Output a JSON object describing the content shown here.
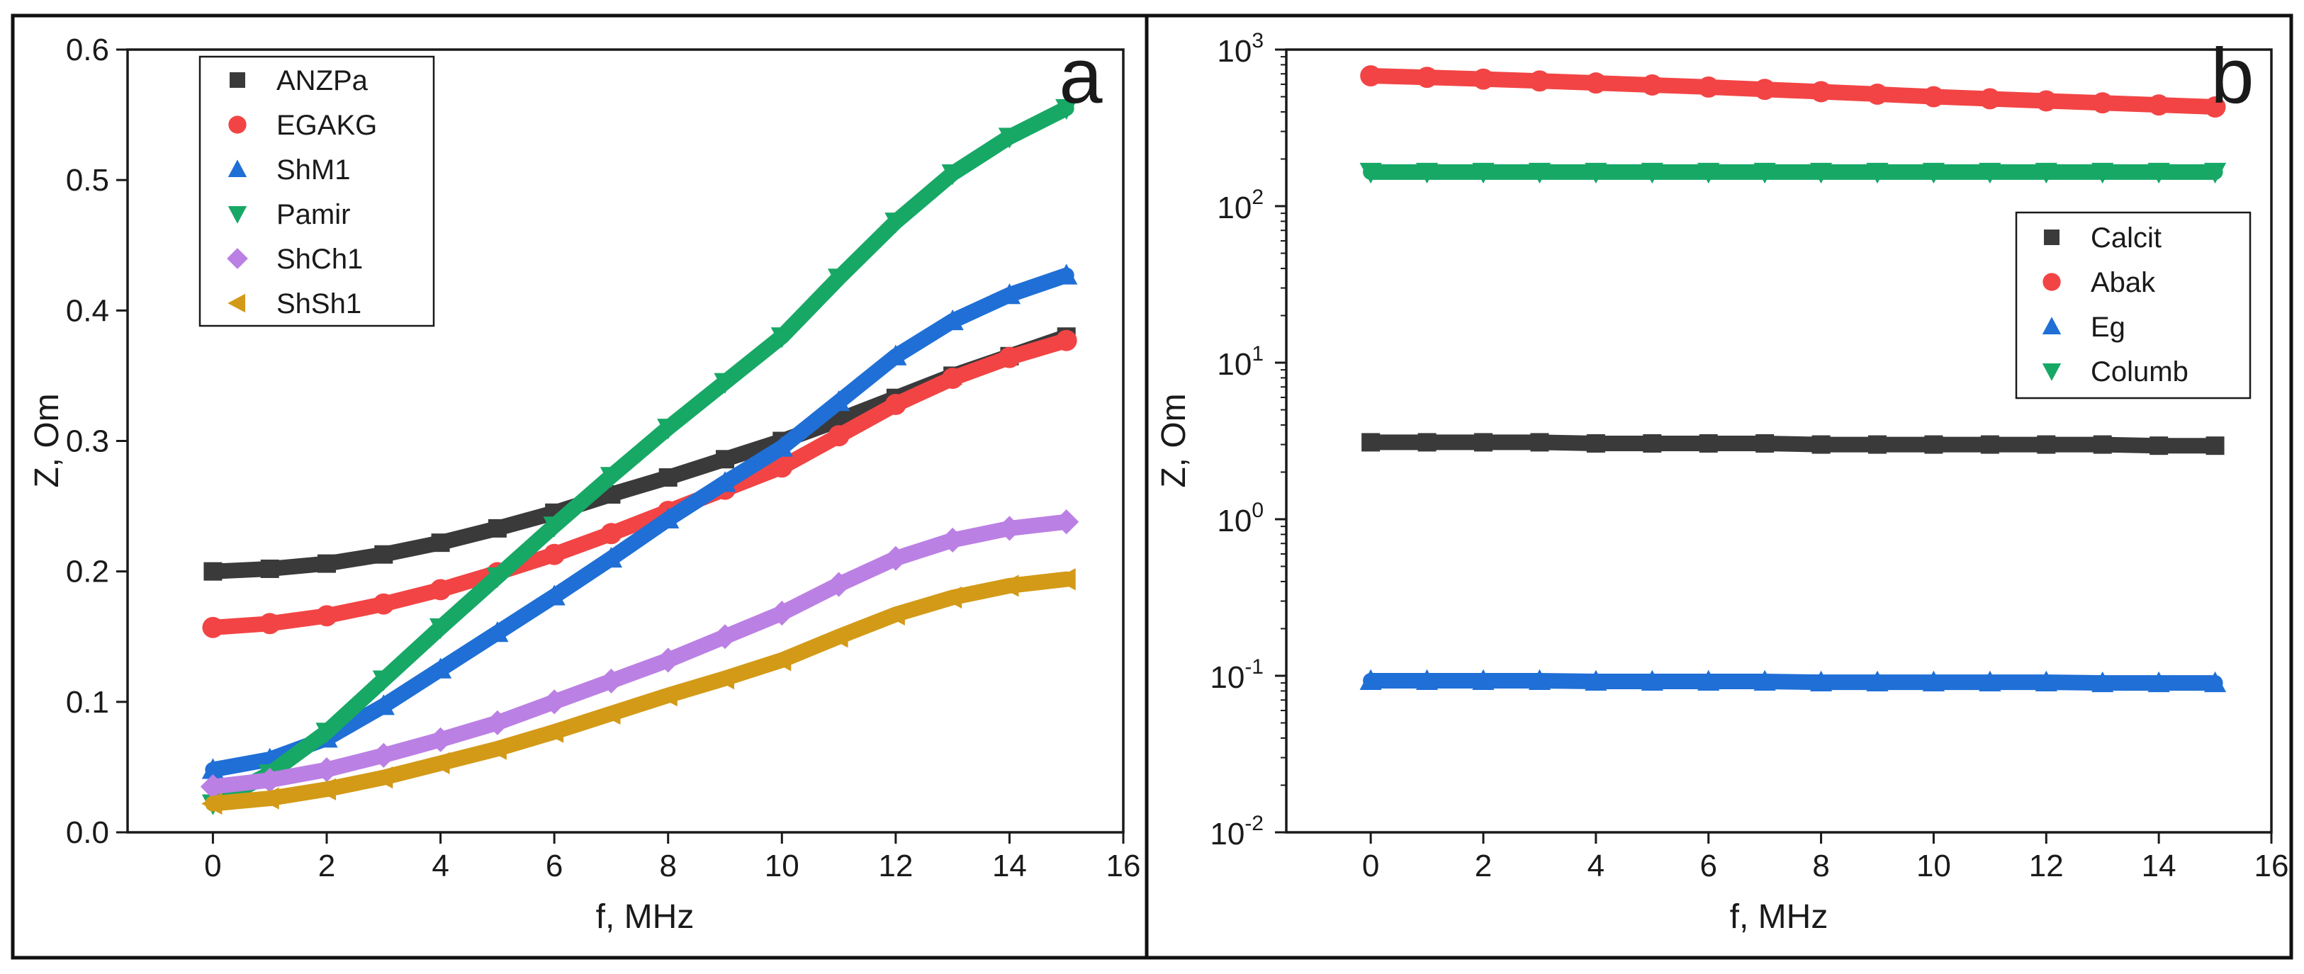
{
  "chart_data": [
    {
      "type": "scatter",
      "panel_label": "a",
      "xlabel": "f, MHz",
      "ylabel": "Z, Om",
      "xlim": [
        -1.5,
        16
      ],
      "ylim": [
        0,
        0.6
      ],
      "yscale": "linear",
      "legend_position": "top-left",
      "x_ticks": [
        {
          "value": 0,
          "label": "0"
        },
        {
          "value": 2,
          "label": "2"
        },
        {
          "value": 4,
          "label": "4"
        },
        {
          "value": 6,
          "label": "6"
        },
        {
          "value": 8,
          "label": "8"
        },
        {
          "value": 10,
          "label": "10"
        },
        {
          "value": 12,
          "label": "12"
        },
        {
          "value": 14,
          "label": "14"
        },
        {
          "value": 16,
          "label": "16"
        }
      ],
      "y_ticks": [
        {
          "value": 0,
          "label": "0.0"
        },
        {
          "value": 0.1,
          "label": "0.1"
        },
        {
          "value": 0.2,
          "label": "0.2"
        },
        {
          "value": 0.3,
          "label": "0.3"
        },
        {
          "value": 0.4,
          "label": "0.4"
        },
        {
          "value": 0.5,
          "label": "0.5"
        },
        {
          "value": 0.6,
          "label": "0.6"
        }
      ],
      "x": [
        0,
        1,
        2,
        3,
        4,
        5,
        6,
        7,
        8,
        9,
        10,
        11,
        12,
        13,
        14,
        15
      ],
      "series": [
        {
          "name": "ANZPa",
          "color": "#3a3a3a",
          "marker": "square",
          "values": [
            0.2,
            0.202,
            0.206,
            0.213,
            0.222,
            0.233,
            0.245,
            0.259,
            0.272,
            0.286,
            0.3,
            0.316,
            0.333,
            0.35,
            0.365,
            0.38
          ]
        },
        {
          "name": "EGAKG",
          "color": "#f24444",
          "marker": "circle",
          "values": [
            0.157,
            0.16,
            0.166,
            0.175,
            0.186,
            0.199,
            0.213,
            0.229,
            0.246,
            0.263,
            0.28,
            0.304,
            0.328,
            0.348,
            0.364,
            0.377
          ]
        },
        {
          "name": "ShM1",
          "color": "#1f6fd6",
          "marker": "triangle-up",
          "values": [
            0.048,
            0.056,
            0.072,
            0.097,
            0.125,
            0.153,
            0.181,
            0.21,
            0.24,
            0.268,
            0.295,
            0.33,
            0.365,
            0.392,
            0.412,
            0.427
          ]
        },
        {
          "name": "Pamir",
          "color": "#17a866",
          "marker": "triangle-down",
          "values": [
            0.022,
            0.045,
            0.077,
            0.117,
            0.157,
            0.196,
            0.235,
            0.273,
            0.31,
            0.345,
            0.38,
            0.425,
            0.468,
            0.505,
            0.533,
            0.555
          ]
        },
        {
          "name": "ShCh1",
          "color": "#bb80e4",
          "marker": "diamond",
          "values": [
            0.035,
            0.04,
            0.048,
            0.059,
            0.071,
            0.084,
            0.1,
            0.116,
            0.132,
            0.15,
            0.168,
            0.19,
            0.21,
            0.224,
            0.233,
            0.238
          ]
        },
        {
          "name": "ShSh1",
          "color": "#d39a17",
          "marker": "triangle-left",
          "values": [
            0.022,
            0.026,
            0.033,
            0.042,
            0.053,
            0.064,
            0.077,
            0.091,
            0.105,
            0.118,
            0.132,
            0.15,
            0.167,
            0.18,
            0.189,
            0.194
          ]
        }
      ]
    },
    {
      "type": "scatter",
      "panel_label": "b",
      "xlabel": "f, MHz",
      "ylabel": "Z, Om",
      "xlim": [
        -1.5,
        16
      ],
      "ylim": [
        0.01,
        1000
      ],
      "yscale": "log",
      "legend_position": "right-middle",
      "x_ticks": [
        {
          "value": 0,
          "label": "0"
        },
        {
          "value": 2,
          "label": "2"
        },
        {
          "value": 4,
          "label": "4"
        },
        {
          "value": 6,
          "label": "6"
        },
        {
          "value": 8,
          "label": "8"
        },
        {
          "value": 10,
          "label": "10"
        },
        {
          "value": 12,
          "label": "12"
        },
        {
          "value": 14,
          "label": "14"
        },
        {
          "value": 16,
          "label": "16"
        }
      ],
      "y_ticks": [
        {
          "value": 0.01,
          "base": "10",
          "exp": "-2"
        },
        {
          "value": 0.1,
          "base": "10",
          "exp": "-1"
        },
        {
          "value": 1,
          "base": "10",
          "exp": "0"
        },
        {
          "value": 10,
          "base": "10",
          "exp": "1"
        },
        {
          "value": 100,
          "base": "10",
          "exp": "2"
        },
        {
          "value": 1000,
          "base": "10",
          "exp": "3"
        }
      ],
      "x": [
        0,
        1,
        2,
        3,
        4,
        5,
        6,
        7,
        8,
        9,
        10,
        11,
        12,
        13,
        14,
        15
      ],
      "series": [
        {
          "name": "Calcit",
          "color": "#3a3a3a",
          "marker": "square",
          "values": [
            3.1,
            3.1,
            3.1,
            3.1,
            3.05,
            3.05,
            3.05,
            3.05,
            3.0,
            3.0,
            3.0,
            3.0,
            3.0,
            3.0,
            2.95,
            2.95
          ]
        },
        {
          "name": "Abak",
          "color": "#f24444",
          "marker": "circle",
          "values": [
            680,
            665,
            648,
            630,
            612,
            594,
            576,
            557,
            538,
            519,
            500,
            485,
            470,
            457,
            443,
            430
          ]
        },
        {
          "name": "Eg",
          "color": "#1f6fd6",
          "marker": "triangle-up",
          "values": [
            0.093,
            0.093,
            0.093,
            0.093,
            0.092,
            0.092,
            0.092,
            0.092,
            0.091,
            0.091,
            0.091,
            0.091,
            0.091,
            0.09,
            0.09,
            0.09
          ]
        },
        {
          "name": "Columb",
          "color": "#17a866",
          "marker": "triangle-down",
          "values": [
            165,
            165,
            165,
            165,
            165,
            165,
            165,
            165,
            165,
            165,
            165,
            165,
            165,
            165,
            165,
            165
          ]
        }
      ]
    }
  ]
}
